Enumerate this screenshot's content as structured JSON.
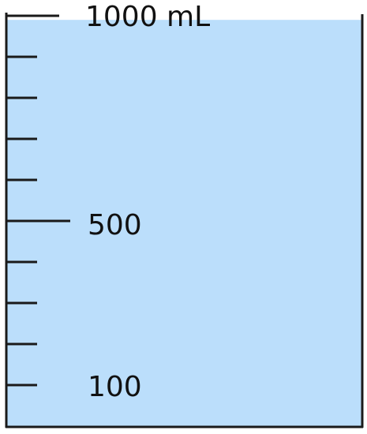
{
  "beaker": {
    "capacity_ml": 1000,
    "fill_ml": 990,
    "tick_step_ml": 100,
    "colors": {
      "water": "#bbdefb",
      "outline": "#1a1a1a"
    }
  },
  "labels": {
    "top": "1000 mL",
    "mid": "500",
    "low": "100"
  }
}
